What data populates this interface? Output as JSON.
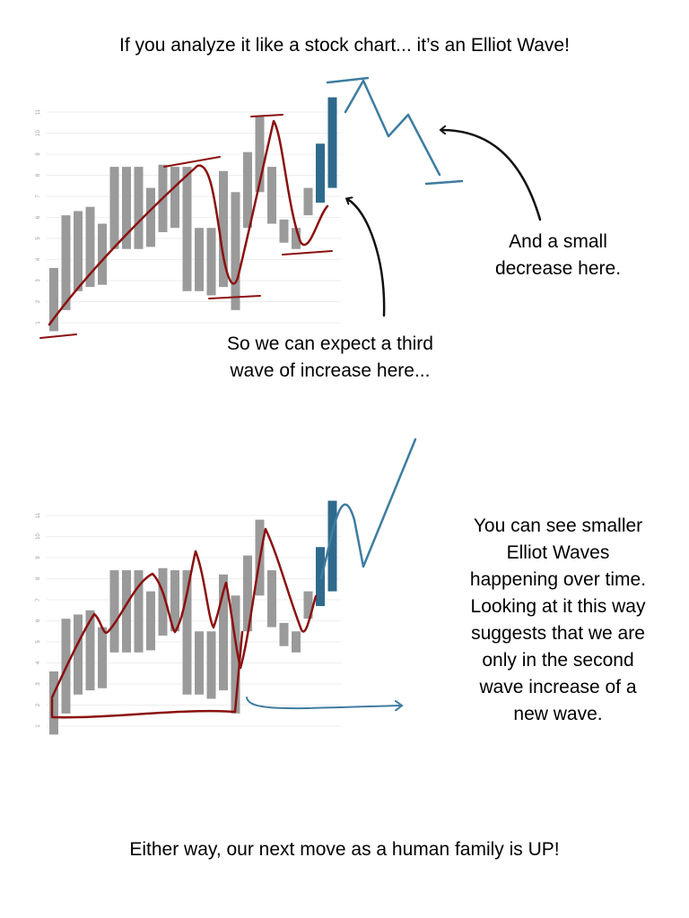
{
  "header": {
    "title": "If you analyze it like a stock chart... it’s an Elliot Wave!"
  },
  "notes": {
    "decrease": [
      "And a small",
      "decrease here."
    ],
    "third_wave": [
      "So we can expect a third",
      "wave of increase here..."
    ],
    "smaller_waves": [
      "You can see smaller",
      "Elliot Waves",
      "happening over time.",
      "Looking at it this way",
      "suggests that we are",
      "only in the second",
      "wave increase of a",
      "new wave."
    ]
  },
  "footer": {
    "text": "Either way, our next move as a human family is UP!"
  },
  "chart_data": [
    {
      "type": "range-bar",
      "categories": [
        null,
        null,
        null,
        null,
        null,
        null,
        null,
        null,
        null,
        null,
        null,
        null,
        null,
        null,
        null,
        null,
        null,
        null,
        null,
        null,
        null,
        null,
        null,
        null
      ],
      "low": [
        0.6,
        1.6,
        2.5,
        2.7,
        2.8,
        4.5,
        4.5,
        4.5,
        4.6,
        5.3,
        5.5,
        2.5,
        2.5,
        2.3,
        2.7,
        1.6,
        5.5,
        7.2,
        5.7,
        4.8,
        4.5,
        6.1,
        6.7,
        7.4
      ],
      "high": [
        3.6,
        6.1,
        6.3,
        6.5,
        5.7,
        8.4,
        8.4,
        8.4,
        7.4,
        8.5,
        8.4,
        8.4,
        5.5,
        5.5,
        8.2,
        7.2,
        9.1,
        10.8,
        8.4,
        5.9,
        5.5,
        7.4,
        9.5,
        11.7
      ],
      "colors": [
        "#9a9a9a",
        "#9a9a9a",
        "#9a9a9a",
        "#9a9a9a",
        "#9a9a9a",
        "#9a9a9a",
        "#9a9a9a",
        "#9a9a9a",
        "#9a9a9a",
        "#9a9a9a",
        "#9a9a9a",
        "#9a9a9a",
        "#9a9a9a",
        "#9a9a9a",
        "#9a9a9a",
        "#9a9a9a",
        "#9a9a9a",
        "#9a9a9a",
        "#9a9a9a",
        "#9a9a9a",
        "#9a9a9a",
        "#9a9a9a",
        "#2f6a8c",
        "#2f6a8c"
      ],
      "ylim": [
        0.4,
        12
      ],
      "yticks": [
        1,
        2,
        3,
        4,
        5,
        6,
        7,
        8,
        9,
        10,
        11
      ],
      "grid": true
    },
    {
      "type": "range-bar",
      "categories": [
        null,
        null,
        null,
        null,
        null,
        null,
        null,
        null,
        null,
        null,
        null,
        null,
        null,
        null,
        null,
        null,
        null,
        null,
        null,
        null,
        null,
        null,
        null,
        null
      ],
      "low": [
        0.6,
        1.6,
        2.5,
        2.7,
        2.8,
        4.5,
        4.5,
        4.5,
        4.6,
        5.3,
        5.5,
        2.5,
        2.5,
        2.3,
        2.7,
        1.6,
        5.5,
        7.2,
        5.7,
        4.8,
        4.5,
        6.1,
        6.7,
        7.4
      ],
      "high": [
        3.6,
        6.1,
        6.3,
        6.5,
        5.7,
        8.4,
        8.4,
        8.4,
        7.4,
        8.5,
        8.4,
        8.4,
        5.5,
        5.5,
        8.2,
        7.2,
        9.1,
        10.8,
        8.4,
        5.9,
        5.5,
        7.4,
        9.5,
        11.7
      ],
      "colors": [
        "#9a9a9a",
        "#9a9a9a",
        "#9a9a9a",
        "#9a9a9a",
        "#9a9a9a",
        "#9a9a9a",
        "#9a9a9a",
        "#9a9a9a",
        "#9a9a9a",
        "#9a9a9a",
        "#9a9a9a",
        "#9a9a9a",
        "#9a9a9a",
        "#9a9a9a",
        "#9a9a9a",
        "#9a9a9a",
        "#9a9a9a",
        "#9a9a9a",
        "#9a9a9a",
        "#9a9a9a",
        "#9a9a9a",
        "#9a9a9a",
        "#2f6a8c",
        "#2f6a8c"
      ],
      "ylim": [
        0.4,
        12
      ],
      "yticks": [
        1,
        2,
        3,
        4,
        5,
        6,
        7,
        8,
        9,
        10,
        11
      ],
      "grid": true
    }
  ]
}
